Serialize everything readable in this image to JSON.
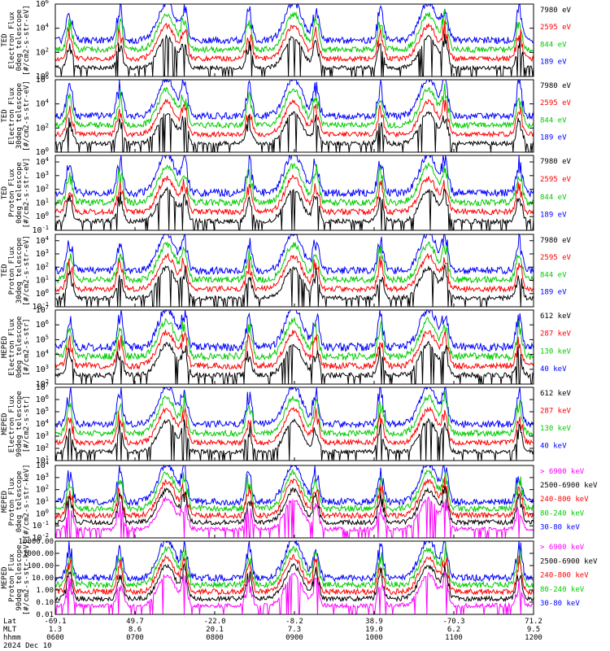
{
  "chart_data": [
    {
      "type": "line",
      "panel": 1,
      "ylabel": [
        "TED",
        "Electron Flux",
        "0deg telescope",
        "[#/cm2-s-str-eV]"
      ],
      "ylog": true,
      "ylim": [
        1,
        1000000
      ],
      "yticks": [
        "10^0",
        "10^2",
        "10^4",
        "10^6"
      ],
      "legend_placement": "right",
      "series": [
        {
          "name": "7980 eV",
          "color": "#000000"
        },
        {
          "name": "2595 eV",
          "color": "#ff0000"
        },
        {
          "name": "844 eV",
          "color": "#00cc00"
        },
        {
          "name": "189 eV",
          "color": "#0000ff"
        }
      ]
    },
    {
      "type": "line",
      "panel": 2,
      "ylabel": [
        "TED",
        "Electron Flux",
        "30deg telescope",
        "[#/cm2-s-str-eV]"
      ],
      "ylog": true,
      "ylim": [
        1,
        1000000
      ],
      "yticks": [
        "10^0",
        "10^2",
        "10^4",
        "10^6"
      ],
      "series": [
        {
          "name": "7980 eV",
          "color": "#000000"
        },
        {
          "name": "2595 eV",
          "color": "#ff0000"
        },
        {
          "name": "844 eV",
          "color": "#00cc00"
        },
        {
          "name": "189 eV",
          "color": "#0000ff"
        }
      ]
    },
    {
      "type": "line",
      "panel": 3,
      "ylabel": [
        "TED",
        "Proton Flux",
        "0deg telescope",
        "[#/cm2-s-str-eV]"
      ],
      "ylog": true,
      "ylim": [
        0.1,
        30000
      ],
      "yticks": [
        "10^-1",
        "10^0",
        "10^1",
        "10^2",
        "10^3",
        "10^4"
      ],
      "series": [
        {
          "name": "7980 eV",
          "color": "#000000"
        },
        {
          "name": "2595 eV",
          "color": "#ff0000"
        },
        {
          "name": "844 eV",
          "color": "#00cc00"
        },
        {
          "name": "189 eV",
          "color": "#0000ff"
        }
      ]
    },
    {
      "type": "line",
      "panel": 4,
      "ylabel": [
        "TED",
        "Proton Flux",
        "30deg telescope",
        "[#/cm2-s-str-eV]"
      ],
      "ylog": true,
      "ylim": [
        0.1,
        30000
      ],
      "yticks": [
        "10^-1",
        "10^0",
        "10^1",
        "10^2",
        "10^3",
        "10^4"
      ],
      "series": [
        {
          "name": "7980 eV",
          "color": "#000000"
        },
        {
          "name": "2595 eV",
          "color": "#ff0000"
        },
        {
          "name": "844 eV",
          "color": "#00cc00"
        },
        {
          "name": "189 eV",
          "color": "#0000ff"
        }
      ]
    },
    {
      "type": "line",
      "panel": 5,
      "ylabel": [
        "MEPED",
        "Electron Flux",
        "0deg telescope",
        "[#/cm2-s-str]"
      ],
      "ylog": true,
      "ylim": [
        100,
        10000000
      ],
      "yticks": [
        "10^2",
        "10^3",
        "10^4",
        "10^5",
        "10^6",
        "10^7"
      ],
      "series": [
        {
          "name": "612 keV",
          "color": "#000000"
        },
        {
          "name": "287 keV",
          "color": "#ff0000"
        },
        {
          "name": "130 keV",
          "color": "#00cc00"
        },
        {
          "name": "40 keV",
          "color": "#0000ff"
        }
      ]
    },
    {
      "type": "line",
      "panel": 6,
      "ylabel": [
        "MEPED",
        "Electron Flux",
        "90deg telescope",
        "[#/cm2-s-str]"
      ],
      "ylog": true,
      "ylim": [
        10,
        10000000
      ],
      "yticks": [
        "10^1",
        "10^2",
        "10^3",
        "10^4",
        "10^5",
        "10^6",
        "10^7"
      ],
      "series": [
        {
          "name": "612 keV",
          "color": "#000000"
        },
        {
          "name": "287 keV",
          "color": "#ff0000"
        },
        {
          "name": "130 keV",
          "color": "#00cc00"
        },
        {
          "name": "40 keV",
          "color": "#0000ff"
        }
      ]
    },
    {
      "type": "line",
      "panel": 7,
      "ylabel": [
        "MEPED",
        "Proton Flux",
        "0deg telescope",
        "[#/cm2-s-str-keV]"
      ],
      "ylog": true,
      "ylim": [
        0.01,
        10000
      ],
      "yticks": [
        "10^-2",
        "10^-1",
        "10^0",
        "10^1",
        "10^2",
        "10^3",
        "10^4"
      ],
      "series": [
        {
          "name": "> 6900 keV",
          "color": "#ff00ff"
        },
        {
          "name": "2500-6900 keV",
          "color": "#000000"
        },
        {
          "name": "240-800 keV",
          "color": "#ff0000"
        },
        {
          "name": "80-240 keV",
          "color": "#00cc00"
        },
        {
          "name": "30-80 keV",
          "color": "#0000ff"
        }
      ]
    },
    {
      "type": "line",
      "panel": 8,
      "ylabel": [
        "MEPED",
        "Proton Flux",
        "90deg telescope",
        "[#/cm2-s-str-keV]"
      ],
      "ylog": true,
      "ylim": [
        0.01,
        10000
      ],
      "yticks": [
        "0.01",
        "0.10",
        "1.00",
        "10.00",
        "100.00",
        "1000.00",
        "10000.00"
      ],
      "series": [
        {
          "name": "> 6900 keV",
          "color": "#ff00ff"
        },
        {
          "name": "2500-6900 keV",
          "color": "#000000"
        },
        {
          "name": "240-800 keV",
          "color": "#ff0000"
        },
        {
          "name": "80-240 keV",
          "color": "#00cc00"
        },
        {
          "name": "30-80 keV",
          "color": "#0000ff"
        }
      ]
    }
  ],
  "xaxis": {
    "row_labels": [
      "Lat",
      "MLT",
      "hhmm",
      "2024 Dec 10"
    ],
    "ticks": [
      {
        "lat": "-69.1",
        "mlt": "1.3",
        "hhmm": "0600"
      },
      {
        "lat": "49.7",
        "mlt": "8.6",
        "hhmm": "0700"
      },
      {
        "lat": "-22.0",
        "mlt": "20.1",
        "hhmm": "0800"
      },
      {
        "lat": "-8.2",
        "mlt": "7.3",
        "hhmm": "0900"
      },
      {
        "lat": "38.9",
        "mlt": "19.0",
        "hhmm": "1000"
      },
      {
        "lat": "-70.3",
        "mlt": "6.2",
        "hhmm": "1100"
      },
      {
        "lat": "71.2",
        "mlt": "9.5",
        "hhmm": "1200"
      }
    ]
  },
  "colors": {
    "black": "#000000",
    "red": "#ff0000",
    "green": "#00cc00",
    "blue": "#0000ff",
    "magenta": "#ff00ff"
  }
}
